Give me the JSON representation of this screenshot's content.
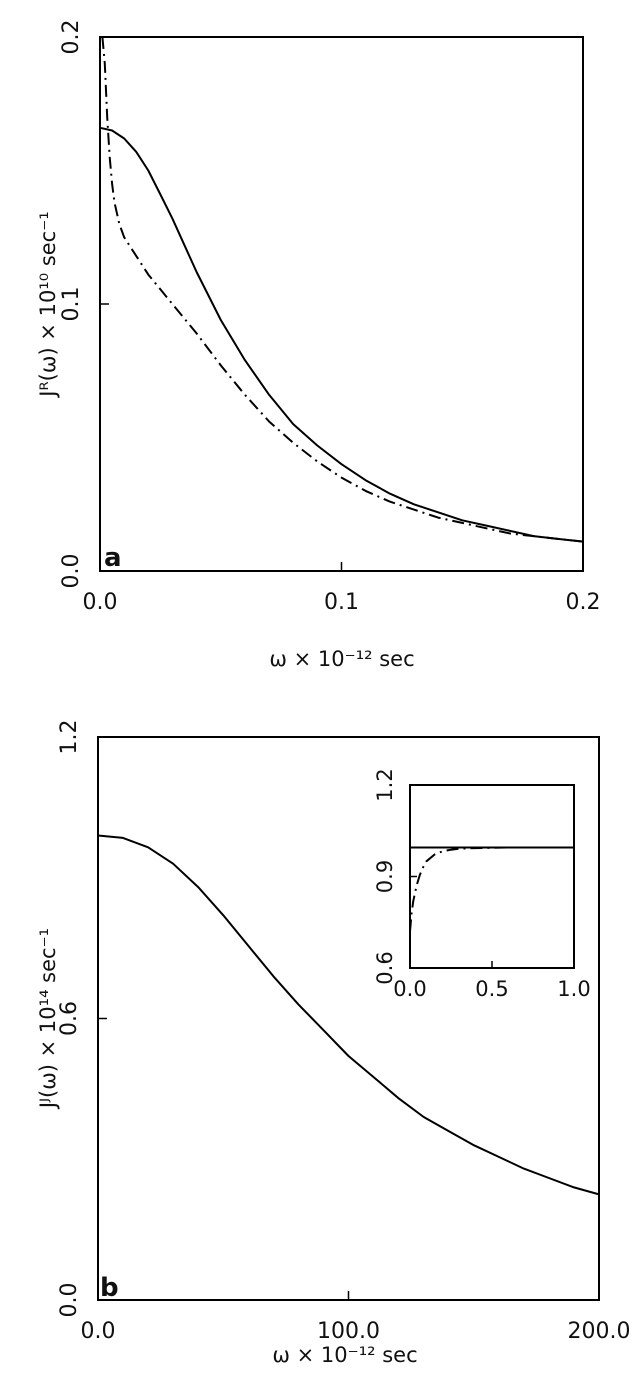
{
  "chart_data": [
    {
      "type": "line",
      "panel_label": "a",
      "xlabel": "ω × 10⁻¹² sec",
      "ylabel": "Jᴿ(ω) × 10¹⁰ sec⁻¹",
      "xlim": [
        0.0,
        0.2
      ],
      "ylim": [
        0.0,
        0.2
      ],
      "xticks": [
        0.0,
        0.1,
        0.2
      ],
      "yticks": [
        0.0,
        0.1,
        0.2
      ],
      "xtick_labels": [
        "0.0",
        "0.1",
        "0.2"
      ],
      "ytick_labels": [
        "0.0",
        "0.1",
        "0.2"
      ],
      "grid": false,
      "series": [
        {
          "style": "solid",
          "x": [
            0,
            0.005,
            0.01,
            0.015,
            0.02,
            0.025,
            0.03,
            0.035,
            0.04,
            0.05,
            0.06,
            0.07,
            0.08,
            0.09,
            0.1,
            0.11,
            0.12,
            0.13,
            0.14,
            0.15,
            0.16,
            0.17,
            0.18,
            0.19,
            0.2
          ],
          "y": [
            0.166,
            0.165,
            0.162,
            0.157,
            0.15,
            0.141,
            0.132,
            0.122,
            0.112,
            0.094,
            0.079,
            0.066,
            0.055,
            0.047,
            0.04,
            0.034,
            0.029,
            0.025,
            0.022,
            0.019,
            0.017,
            0.015,
            0.013,
            0.012,
            0.011
          ]
        },
        {
          "style": "dash-dot",
          "x": [
            0.001,
            0.002,
            0.003,
            0.004,
            0.005,
            0.006,
            0.008,
            0.01,
            0.015,
            0.02,
            0.03,
            0.04,
            0.05,
            0.06,
            0.07,
            0.08,
            0.09,
            0.1,
            0.11,
            0.12,
            0.13,
            0.14,
            0.15,
            0.16,
            0.17,
            0.18,
            0.19,
            0.2
          ],
          "y": [
            0.2,
            0.19,
            0.17,
            0.155,
            0.145,
            0.138,
            0.13,
            0.125,
            0.118,
            0.111,
            0.1,
            0.089,
            0.077,
            0.066,
            0.056,
            0.048,
            0.041,
            0.035,
            0.03,
            0.026,
            0.023,
            0.02,
            0.018,
            0.016,
            0.014,
            0.013,
            0.012,
            0.011
          ]
        }
      ]
    },
    {
      "type": "line",
      "panel_label": "b",
      "xlabel": "ω × 10⁻¹² sec",
      "ylabel": "Jᴶ(ω) × 10¹⁴ sec⁻¹",
      "xlim": [
        0.0,
        200.0
      ],
      "ylim": [
        0.0,
        1.2
      ],
      "xticks": [
        0,
        100,
        200
      ],
      "yticks": [
        0.0,
        0.6,
        1.2
      ],
      "xtick_labels": [
        "0.0",
        "100.0",
        "200.0"
      ],
      "ytick_labels": [
        "0.0",
        "0.6",
        "1.2"
      ],
      "grid": false,
      "series": [
        {
          "style": "solid",
          "x": [
            0,
            10,
            20,
            30,
            40,
            50,
            60,
            70,
            80,
            90,
            100,
            110,
            120,
            130,
            140,
            150,
            160,
            170,
            180,
            190,
            200
          ],
          "y": [
            0.99,
            0.985,
            0.965,
            0.93,
            0.88,
            0.82,
            0.755,
            0.69,
            0.63,
            0.575,
            0.52,
            0.475,
            0.43,
            0.39,
            0.36,
            0.33,
            0.305,
            0.28,
            0.26,
            0.24,
            0.225
          ]
        }
      ],
      "inset": {
        "xlim": [
          0.0,
          1.0
        ],
        "ylim": [
          0.6,
          1.2
        ],
        "xticks": [
          0.0,
          0.5,
          1.0
        ],
        "yticks": [
          0.6,
          0.9,
          1.2
        ],
        "xtick_labels": [
          "0.0",
          "0.5",
          "1.0"
        ],
        "ytick_labels": [
          "0.6",
          "0.9",
          "1.2"
        ],
        "series": [
          {
            "style": "solid",
            "x": [
              0,
              0.25,
              0.5,
              0.75,
              1.0
            ],
            "y": [
              0.995,
              0.995,
              0.995,
              0.995,
              0.995
            ]
          },
          {
            "style": "dash-dot",
            "x": [
              0.0,
              0.01,
              0.02,
              0.04,
              0.06,
              0.08,
              0.1,
              0.15,
              0.2,
              0.25,
              0.3,
              0.4,
              0.5,
              0.6,
              0.8,
              1.0
            ],
            "y": [
              0.72,
              0.78,
              0.82,
              0.87,
              0.905,
              0.93,
              0.95,
              0.972,
              0.983,
              0.988,
              0.991,
              0.993,
              0.994,
              0.995,
              0.995,
              0.995
            ]
          }
        ]
      }
    }
  ]
}
